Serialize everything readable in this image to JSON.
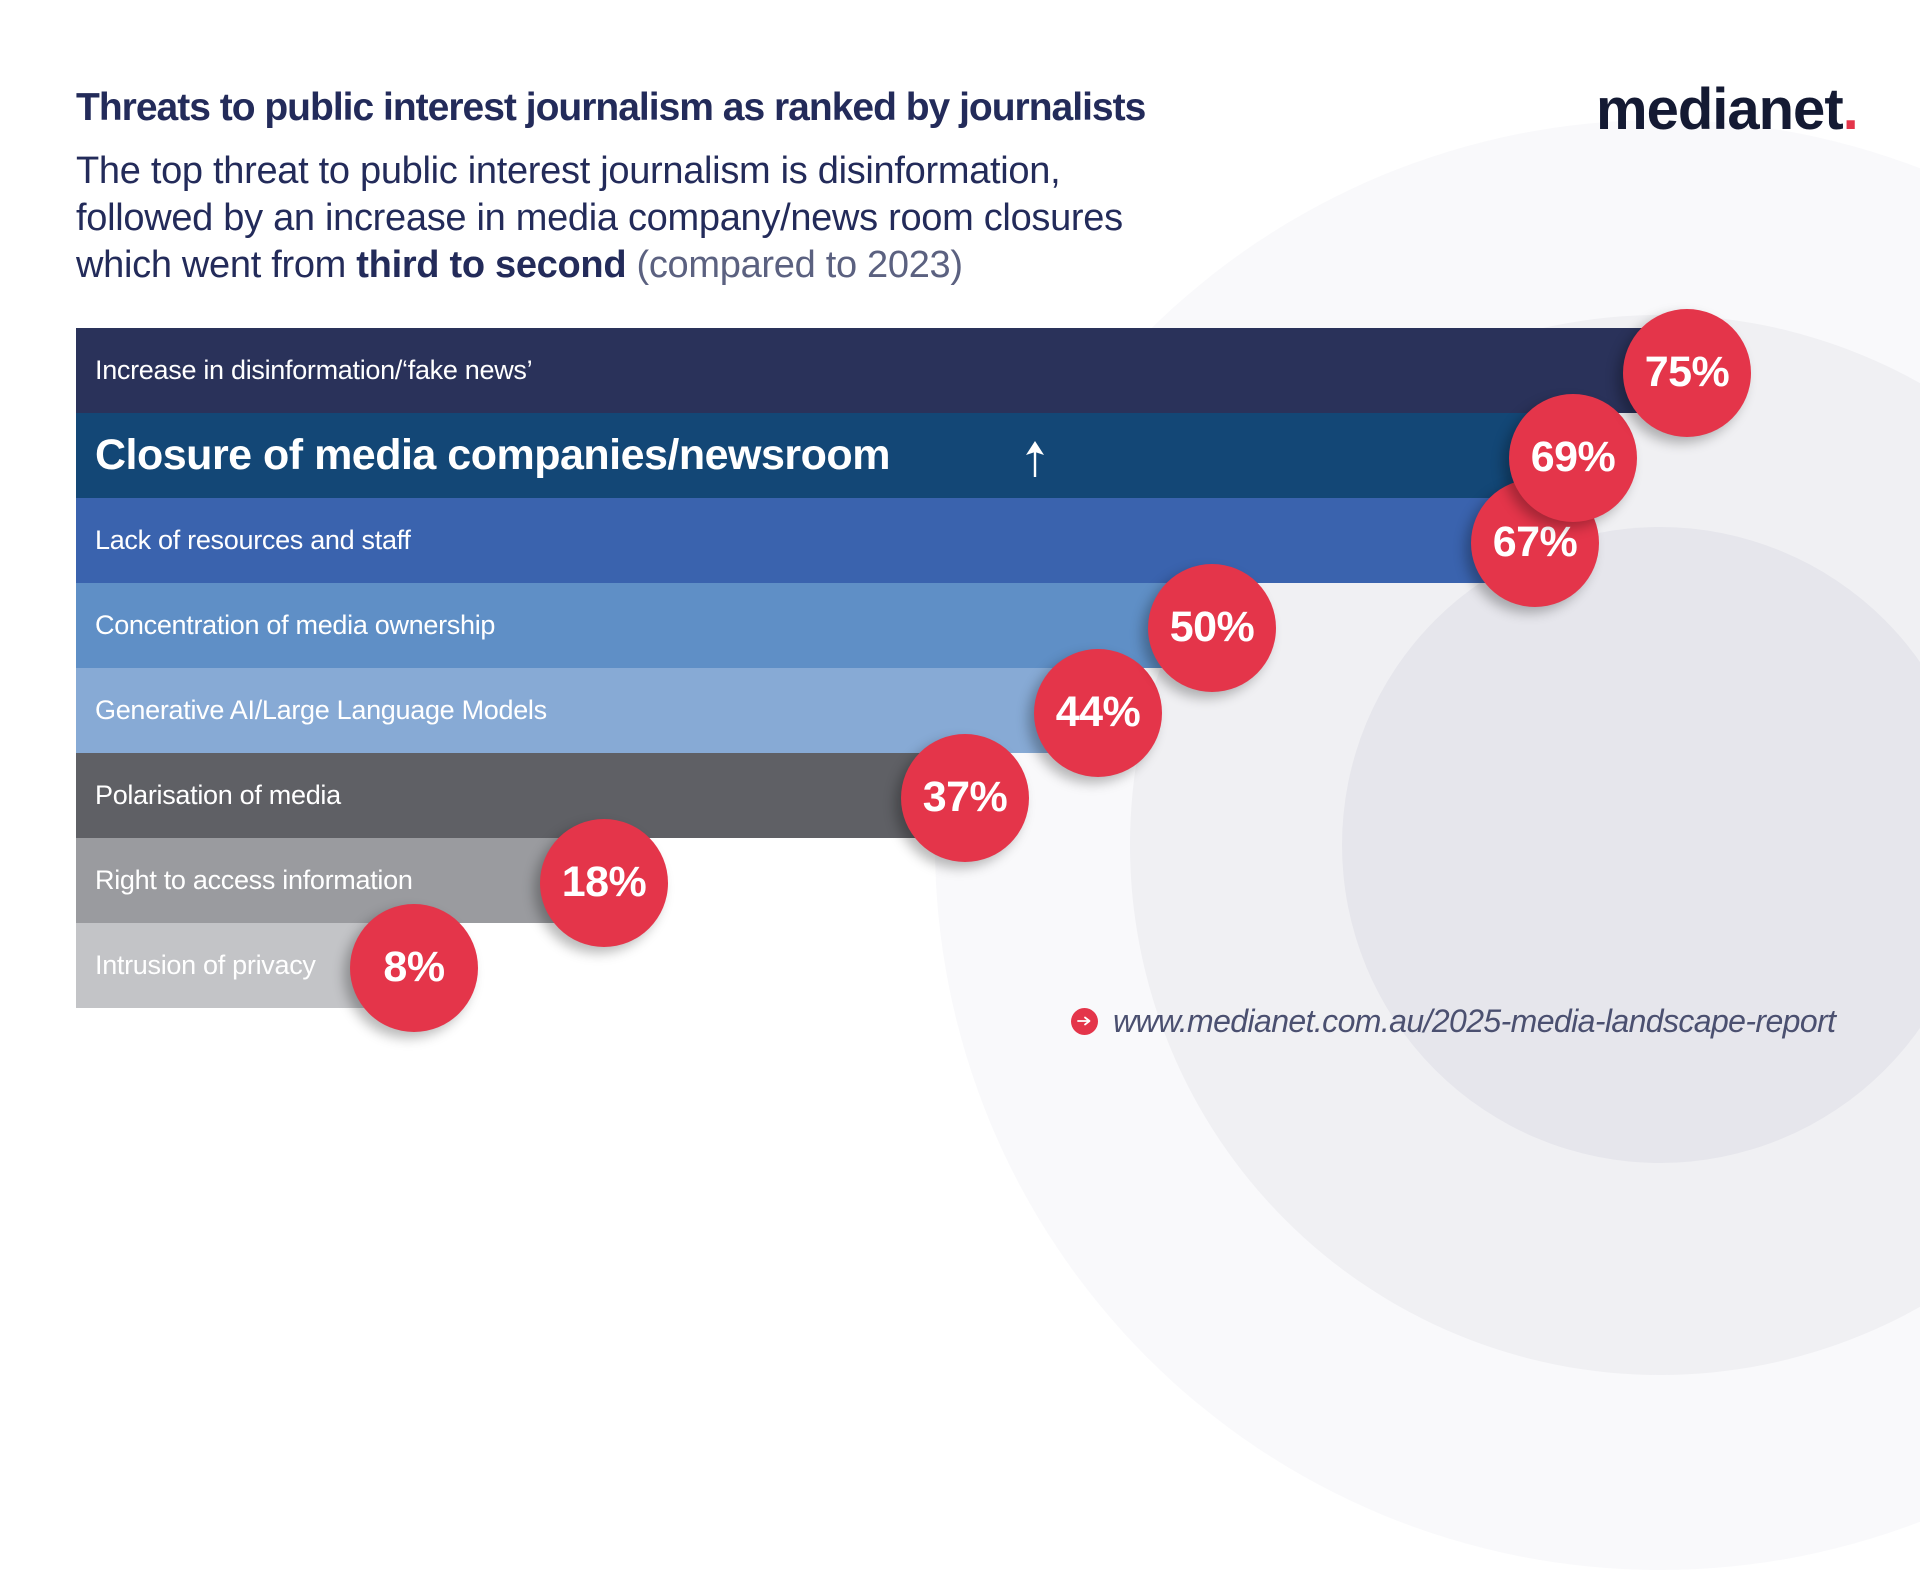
{
  "header": {
    "title": "Threats to public interest journalism as ranked by journalists",
    "subtitle": {
      "line1": "The top threat to public interest journalism is disinformation,",
      "line2": "followed by an increase in media company/news room closures",
      "line3_prefix": "which went from ",
      "line3_bold": "third to second",
      "line3_suffix": " (compared to 2023)"
    }
  },
  "logo": {
    "text": "medianet",
    "dot": ".",
    "dot_color": "#e4354a"
  },
  "footer": {
    "icon": "arrow-right-circle-icon",
    "url": "www.medianet.com.au/2025-media-landscape-report"
  },
  "chart_data": {
    "type": "bar",
    "orientation": "horizontal",
    "title": "Threats to public interest journalism as ranked by journalists",
    "xlabel": "",
    "ylabel": "",
    "xlim": [
      0,
      100
    ],
    "unit": "%",
    "grid": false,
    "legend": "none",
    "categories": [
      "Increase in disinformation/‘fake news’",
      "Closure of media companies/newsroom",
      "Lack of resources and staff",
      "Concentration of media ownership",
      "Generative AI/Large Language Models",
      "Polarisation of media",
      "Right to access information",
      "Intrusion of privacy"
    ],
    "values": [
      75,
      69,
      67,
      50,
      44,
      37,
      18,
      8
    ],
    "labels": [
      "75%",
      "69%",
      "67%",
      "50%",
      "44%",
      "37%",
      "18%",
      "8%"
    ],
    "bar_colors": [
      "#2a325a",
      "#134776",
      "#3a63ae",
      "#5f8fc6",
      "#87aad5",
      "#5f6065",
      "#9a9b9f",
      "#c3c4c7"
    ],
    "label_circle_color": "#e4354a",
    "highlighted_index": 1,
    "annotations": [
      {
        "category_index": 1,
        "type": "up-arrow-icon",
        "meaning": "moved up in rank"
      }
    ]
  }
}
